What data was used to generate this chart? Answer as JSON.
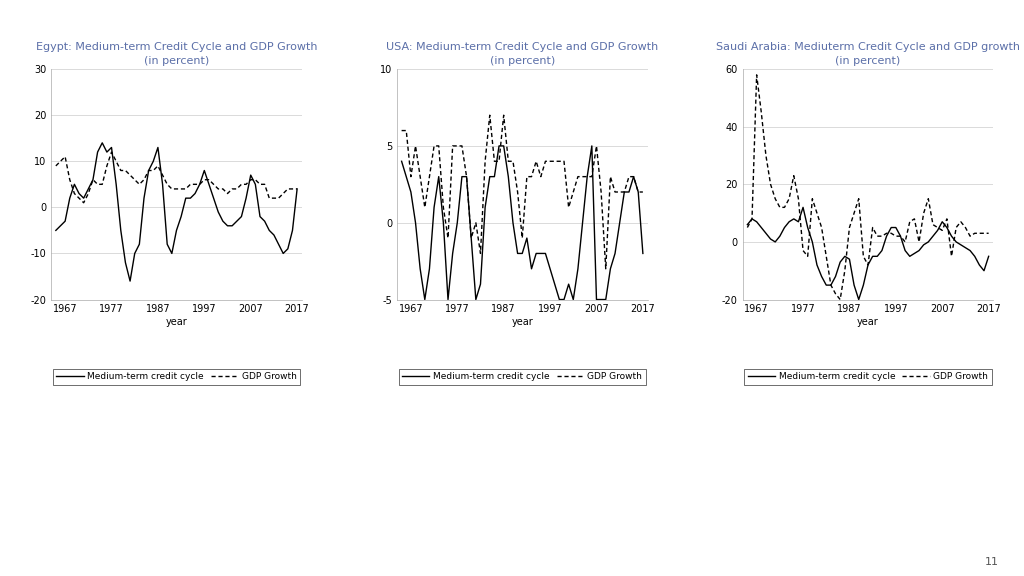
{
  "egypt_title": "Egypt: Medium-term Credit Cycle and GDP Growth\n(in percent)",
  "usa_title": "USA: Medium-term Credit Cycle and GDP Growth\n(in percent)",
  "saudi_title": "Saudi Arabia: Mediuterm Credit Cycle and GDP growth\n(in percent)",
  "xlabel": "year",
  "legend_credit": "Medium-term credit cycle",
  "legend_gdp": "GDP Growth",
  "egypt_credit": [
    -5,
    -4,
    -3,
    2,
    5,
    3,
    2,
    4,
    6,
    12,
    14,
    12,
    13,
    5,
    -5,
    -12,
    -16,
    -10,
    -8,
    2,
    8,
    10,
    13,
    5,
    -8,
    -10,
    -5,
    -2,
    2,
    2,
    3,
    5,
    8,
    5,
    2,
    -1,
    -3,
    -4,
    -4,
    -3,
    -2,
    2,
    7,
    5,
    -2,
    -3,
    -5,
    -6,
    -8,
    -10,
    -9,
    -5,
    4
  ],
  "egypt_gdp": [
    9,
    10,
    11,
    6,
    3,
    2,
    1,
    3,
    6,
    5,
    5,
    9,
    12,
    10,
    8,
    8,
    7,
    6,
    5,
    6,
    8,
    8,
    9,
    7,
    5,
    4,
    4,
    4,
    4,
    5,
    5,
    5,
    6,
    6,
    5,
    4,
    4,
    3,
    4,
    4,
    5,
    5,
    6,
    6,
    5,
    5,
    2,
    2,
    2,
    3,
    4,
    4,
    4
  ],
  "usa_credit": [
    4,
    3,
    2,
    0,
    -3,
    -5,
    -3,
    1,
    3,
    0,
    -5,
    -2,
    0,
    3,
    3,
    -1,
    -5,
    -4,
    1,
    3,
    3,
    5,
    5,
    3,
    0,
    -2,
    -2,
    -1,
    -3,
    -2,
    -2,
    -2,
    -3,
    -4,
    -5,
    -5,
    -4,
    -5,
    -3,
    0,
    3,
    5,
    -5,
    -5,
    -5,
    -3,
    -2,
    0,
    2,
    2,
    3,
    2,
    -2
  ],
  "usa_gdp": [
    6,
    6,
    3,
    5,
    3,
    1,
    3,
    5,
    5,
    1,
    -1,
    5,
    5,
    5,
    3,
    -1,
    0,
    -2,
    4,
    7,
    4,
    4,
    7,
    4,
    4,
    2,
    -1,
    3,
    3,
    4,
    3,
    4,
    4,
    4,
    4,
    4,
    1,
    2,
    3,
    3,
    3,
    3,
    5,
    2,
    -3,
    3,
    2,
    2,
    2,
    3,
    3,
    2,
    2
  ],
  "saudi_credit": [
    6,
    8,
    7,
    5,
    3,
    1,
    0,
    2,
    5,
    7,
    8,
    7,
    12,
    5,
    0,
    -8,
    -12,
    -15,
    -15,
    -12,
    -7,
    -5,
    -6,
    -15,
    -20,
    -15,
    -8,
    -5,
    -5,
    -3,
    2,
    5,
    5,
    2,
    -3,
    -5,
    -4,
    -3,
    -1,
    0,
    2,
    4,
    7,
    5,
    2,
    0,
    -1,
    -2,
    -3,
    -5,
    -8,
    -10,
    -5
  ],
  "saudi_gdp": [
    5,
    8,
    58,
    45,
    30,
    20,
    15,
    12,
    12,
    15,
    23,
    15,
    -3,
    -5,
    15,
    10,
    5,
    -5,
    -15,
    -18,
    -20,
    -10,
    5,
    10,
    15,
    -5,
    -8,
    5,
    2,
    2,
    3,
    3,
    2,
    2,
    0,
    7,
    8,
    0,
    10,
    15,
    6,
    5,
    4,
    8,
    -5,
    5,
    7,
    5,
    2,
    3,
    3,
    3,
    3
  ],
  "egypt_ylim": [
    -20,
    30
  ],
  "egypt_yticks": [
    -20,
    -10,
    0,
    10,
    20,
    30
  ],
  "usa_ylim": [
    -5,
    10
  ],
  "usa_yticks": [
    -5,
    0,
    5,
    10
  ],
  "saudi_ylim": [
    -20,
    60
  ],
  "saudi_yticks": [
    -20,
    0,
    20,
    40,
    60
  ],
  "xticks": [
    1967,
    1977,
    1987,
    1997,
    2007,
    2017
  ],
  "title_color": "#5B6FA8",
  "title_fontsize": 8,
  "axis_fontsize": 7,
  "legend_fontsize": 6.5
}
